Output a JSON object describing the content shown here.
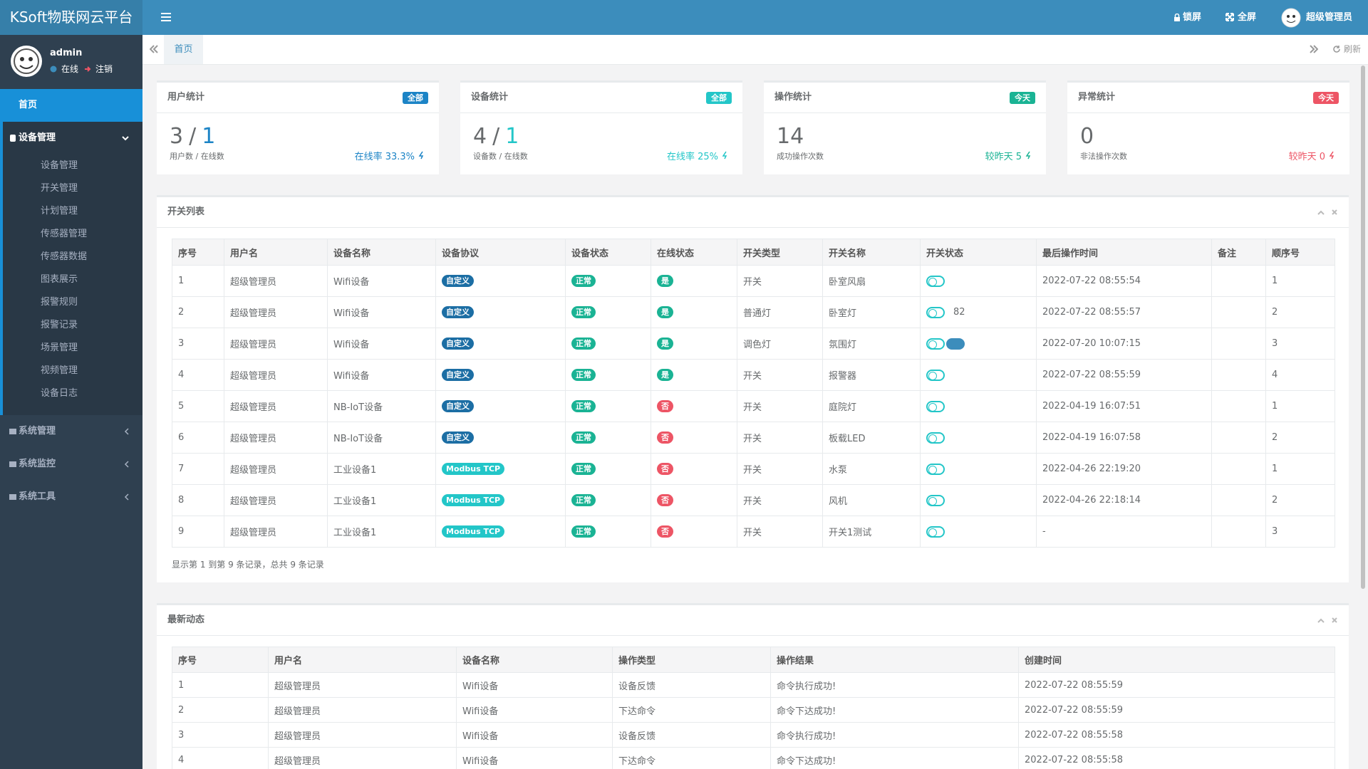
{
  "header": {
    "logo": "KSoft物联网云平台",
    "lock": "锁屏",
    "fullscreen": "全屏",
    "user": "超级管理员"
  },
  "sidebar": {
    "username": "admin",
    "status": "在线",
    "logout": "注销",
    "menu": [
      {
        "label": "首页",
        "active": true
      },
      {
        "label": "设备管理",
        "expanded": true,
        "children": [
          "设备管理",
          "开关管理",
          "计划管理",
          "传感器管理",
          "传感器数据",
          "图表展示",
          "报警规则",
          "报警记录",
          "场景管理",
          "视频管理",
          "设备日志"
        ]
      },
      {
        "label": "系统管理"
      },
      {
        "label": "系统监控"
      },
      {
        "label": "系统工具"
      }
    ]
  },
  "tabs": {
    "active": "首页",
    "refresh": "刷新"
  },
  "stats": [
    {
      "title": "用户统计",
      "badge": "全部",
      "color": "#1c84c6",
      "value": 3,
      "separator": "/",
      "value2": 1,
      "label": "用户数 / 在线数",
      "note": "在线率 33.3%"
    },
    {
      "title": "设备统计",
      "badge": "全部",
      "color": "#23c6c8",
      "value": 4,
      "separator": "/",
      "value2": 1,
      "label": "设备数 / 在线数",
      "note": "在线率 25%"
    },
    {
      "title": "操作统计",
      "badge": "今天",
      "color": "#1ab394",
      "value": 14,
      "label": "成功操作次数",
      "note": "较昨天 5"
    },
    {
      "title": "异常统计",
      "badge": "今天",
      "color": "#ed5565",
      "value": 0,
      "label": "非法操作次数",
      "note": "较昨天 0"
    }
  ],
  "switch_table": {
    "title": "开关列表",
    "columns": [
      "序号",
      "用户名",
      "设备名称",
      "设备协议",
      "设备状态",
      "在线状态",
      "开关类型",
      "开关名称",
      "开关状态",
      "最后操作时间",
      "备注",
      "顺序号"
    ],
    "badge_colors": {
      "自定义": "#1c6ea4",
      "Modbus TCP": "#23c6c8",
      "正常": "#1ab394",
      "是": "#1ab394",
      "否": "#ed5565"
    },
    "rows": [
      {
        "id": 1,
        "user": "超级管理员",
        "device": "Wifi设备",
        "protocol": "自定义",
        "status": "正常",
        "online": "是",
        "type": "开关",
        "name": "卧室风扇",
        "time": "2022-07-22 08:55:54",
        "order": 1
      },
      {
        "id": 2,
        "user": "超级管理员",
        "device": "Wifi设备",
        "protocol": "自定义",
        "status": "正常",
        "online": "是",
        "type": "普通灯",
        "name": "卧室灯",
        "switch_value": 82,
        "time": "2022-07-22 08:55:57",
        "order": 2
      },
      {
        "id": 3,
        "user": "超级管理员",
        "device": "Wifi设备",
        "protocol": "自定义",
        "status": "正常",
        "online": "是",
        "type": "调色灯",
        "name": "氛围灯",
        "chip_color": "#3c8dbc",
        "time": "2022-07-20 10:07:15",
        "order": 3
      },
      {
        "id": 4,
        "user": "超级管理员",
        "device": "Wifi设备",
        "protocol": "自定义",
        "status": "正常",
        "online": "是",
        "type": "开关",
        "name": "报警器",
        "time": "2022-07-22 08:55:59",
        "order": 4
      },
      {
        "id": 5,
        "user": "超级管理员",
        "device": "NB-IoT设备",
        "protocol": "自定义",
        "status": "正常",
        "online": "否",
        "type": "开关",
        "name": "庭院灯",
        "time": "2022-04-19 16:07:51",
        "order": 1
      },
      {
        "id": 6,
        "user": "超级管理员",
        "device": "NB-IoT设备",
        "protocol": "自定义",
        "status": "正常",
        "online": "否",
        "type": "开关",
        "name": "板载LED",
        "time": "2022-04-19 16:07:58",
        "order": 2
      },
      {
        "id": 7,
        "user": "超级管理员",
        "device": "工业设备1",
        "protocol": "Modbus TCP",
        "status": "正常",
        "online": "否",
        "type": "开关",
        "name": "水泵",
        "time": "2022-04-26 22:19:20",
        "order": 1
      },
      {
        "id": 8,
        "user": "超级管理员",
        "device": "工业设备1",
        "protocol": "Modbus TCP",
        "status": "正常",
        "online": "否",
        "type": "开关",
        "name": "风机",
        "time": "2022-04-26 22:18:14",
        "order": 2
      },
      {
        "id": 9,
        "user": "超级管理员",
        "device": "工业设备1",
        "protocol": "Modbus TCP",
        "status": "正常",
        "online": "否",
        "type": "开关",
        "name": "开关1测试",
        "time": "-",
        "order": 3
      }
    ],
    "footer": "显示第 1 到第 9 条记录，总共 9 条记录"
  },
  "activity_table": {
    "title": "最新动态",
    "columns": [
      "序号",
      "用户名",
      "设备名称",
      "操作类型",
      "操作结果",
      "创建时间"
    ],
    "rows": [
      {
        "id": 1,
        "user": "超级管理员",
        "device": "Wifi设备",
        "op_type": "设备反馈",
        "result": "命令执行成功!",
        "time": "2022-07-22 08:55:59"
      },
      {
        "id": 2,
        "user": "超级管理员",
        "device": "Wifi设备",
        "op_type": "下达命令",
        "result": "命令下达成功!",
        "time": "2022-07-22 08:55:59"
      },
      {
        "id": 3,
        "user": "超级管理员",
        "device": "Wifi设备",
        "op_type": "设备反馈",
        "result": "命令执行成功!",
        "time": "2022-07-22 08:55:58"
      },
      {
        "id": 4,
        "user": "超级管理员",
        "device": "Wifi设备",
        "op_type": "下达命令",
        "result": "命令下达成功!",
        "time": "2022-07-22 08:55:58"
      }
    ]
  }
}
